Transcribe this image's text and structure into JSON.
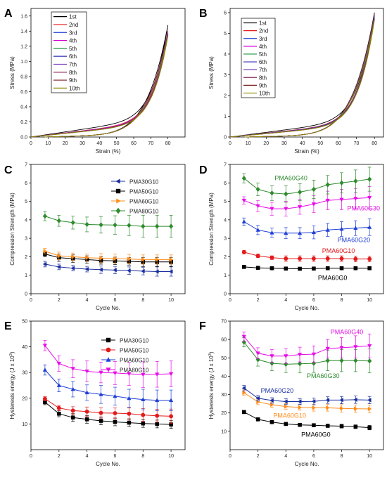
{
  "chart_data": [
    {
      "panel": "A",
      "type": "line",
      "xlabel": "Strain (%)",
      "ylabel": "Stress (MPa)",
      "xlim": [
        0,
        90
      ],
      "ylim": [
        0,
        1.7
      ],
      "xticks": [
        0,
        10,
        20,
        30,
        40,
        50,
        60,
        70,
        80
      ],
      "yticks": [
        0.0,
        0.2,
        0.4,
        0.6,
        0.8,
        1.0,
        1.2,
        1.4,
        1.6
      ],
      "ytick_labels": [
        "0.0",
        "0.2",
        "0.4",
        "0.6",
        "0.8",
        "1.0",
        "1.2",
        "1.4",
        "1.6"
      ],
      "legend": "top-left",
      "peak_strain": 80,
      "series": [
        {
          "name": "1st",
          "color": "#000000",
          "peak": 1.48,
          "load_mid": 0.27,
          "unload_mid": 0.05
        },
        {
          "name": "2nd",
          "color": "#e31a1c",
          "peak": 1.4,
          "load_mid": 0.22,
          "unload_mid": 0.05
        },
        {
          "name": "3rd",
          "color": "#1f3fd6",
          "peak": 1.38,
          "load_mid": 0.21,
          "unload_mid": 0.05
        },
        {
          "name": "4th",
          "color": "#d600d6",
          "peak": 1.37,
          "load_mid": 0.21,
          "unload_mid": 0.05
        },
        {
          "name": "5th",
          "color": "#1a9641",
          "peak": 1.36,
          "load_mid": 0.2,
          "unload_mid": 0.05
        },
        {
          "name": "6th",
          "color": "#2c2cb0",
          "peak": 1.36,
          "load_mid": 0.2,
          "unload_mid": 0.05
        },
        {
          "name": "7th",
          "color": "#7b3fbf",
          "peak": 1.35,
          "load_mid": 0.2,
          "unload_mid": 0.05
        },
        {
          "name": "8th",
          "color": "#8c2d5c",
          "peak": 1.35,
          "load_mid": 0.2,
          "unload_mid": 0.05
        },
        {
          "name": "9th",
          "color": "#7a1f1f",
          "peak": 1.34,
          "load_mid": 0.19,
          "unload_mid": 0.05
        },
        {
          "name": "10th",
          "color": "#8c8c00",
          "peak": 1.34,
          "load_mid": 0.19,
          "unload_mid": 0.05
        }
      ]
    },
    {
      "panel": "B",
      "type": "line",
      "xlabel": "Strain (%)",
      "ylabel": "Stress (MPa)",
      "xlim": [
        0,
        85
      ],
      "ylim": [
        0,
        6.2
      ],
      "xticks": [
        0,
        10,
        20,
        30,
        40,
        50,
        60,
        70,
        80
      ],
      "yticks": [
        0,
        1,
        2,
        3,
        4,
        5,
        6
      ],
      "ytick_labels": [
        "0",
        "1",
        "2",
        "3",
        "4",
        "5",
        "6"
      ],
      "legend": "top-left",
      "peak_strain": 80,
      "series": [
        {
          "name": "1st",
          "color": "#000000",
          "peak": 6.0,
          "load_mid": 0.9,
          "unload_mid": 0.15
        },
        {
          "name": "2nd",
          "color": "#e31a1c",
          "peak": 5.9,
          "load_mid": 0.75,
          "unload_mid": 0.15
        },
        {
          "name": "3rd",
          "color": "#1f3fd6",
          "peak": 5.85,
          "load_mid": 0.72,
          "unload_mid": 0.15
        },
        {
          "name": "4th",
          "color": "#d600d6",
          "peak": 5.8,
          "load_mid": 0.7,
          "unload_mid": 0.15
        },
        {
          "name": "5th",
          "color": "#1a9641",
          "peak": 5.8,
          "load_mid": 0.69,
          "unload_mid": 0.15
        },
        {
          "name": "6th",
          "color": "#2c2cb0",
          "peak": 5.75,
          "load_mid": 0.68,
          "unload_mid": 0.15
        },
        {
          "name": "7th",
          "color": "#7b3fbf",
          "peak": 5.75,
          "load_mid": 0.67,
          "unload_mid": 0.15
        },
        {
          "name": "8th",
          "color": "#8c2d5c",
          "peak": 5.7,
          "load_mid": 0.66,
          "unload_mid": 0.15
        },
        {
          "name": "9th",
          "color": "#7a1f1f",
          "peak": 5.7,
          "load_mid": 0.66,
          "unload_mid": 0.15
        },
        {
          "name": "10th",
          "color": "#8c8c00",
          "peak": 5.65,
          "load_mid": 0.65,
          "unload_mid": 0.15
        }
      ]
    },
    {
      "panel": "C",
      "type": "scatter",
      "xlabel": "Cycle No.",
      "ylabel": "Compression Strength (MPa)",
      "xlim": [
        0,
        11
      ],
      "ylim": [
        0,
        7
      ],
      "xticks": [
        0,
        2,
        4,
        6,
        8,
        10
      ],
      "yticks": [
        0,
        1,
        2,
        3,
        4,
        5,
        6,
        7
      ],
      "ytick_labels": [
        "0",
        "1",
        "2",
        "3",
        "4",
        "5",
        "6",
        "7"
      ],
      "legend": "top-center",
      "x": [
        1,
        2,
        3,
        4,
        5,
        6,
        7,
        8,
        9,
        10
      ],
      "series": [
        {
          "name": "PMA30G10",
          "color": "#1a2f9e",
          "marker": "triangle-left",
          "values": [
            1.6,
            1.45,
            1.38,
            1.33,
            1.3,
            1.28,
            1.25,
            1.22,
            1.2,
            1.2
          ],
          "errors": [
            0.15,
            0.15,
            0.15,
            0.15,
            0.2,
            0.2,
            0.2,
            0.2,
            0.25,
            0.25
          ]
        },
        {
          "name": "PMA50G10",
          "color": "#000000",
          "marker": "square",
          "values": [
            2.15,
            1.95,
            1.9,
            1.85,
            1.8,
            1.78,
            1.75,
            1.72,
            1.72,
            1.72
          ],
          "errors": [
            0.15,
            0.2,
            0.2,
            0.2,
            0.2,
            0.2,
            0.2,
            0.25,
            0.25,
            0.25
          ]
        },
        {
          "name": "PMA60G10",
          "color": "#ff8c1a",
          "marker": "triangle-right",
          "values": [
            2.3,
            2.05,
            2.0,
            1.95,
            1.92,
            1.9,
            1.88,
            1.85,
            1.85,
            1.85
          ],
          "errors": [
            0.15,
            0.2,
            0.2,
            0.2,
            0.25,
            0.25,
            0.25,
            0.25,
            0.25,
            0.25
          ]
        },
        {
          "name": "PMA80G10",
          "color": "#2e8b2e",
          "marker": "diamond",
          "values": [
            4.2,
            3.95,
            3.85,
            3.75,
            3.73,
            3.72,
            3.7,
            3.65,
            3.65,
            3.65
          ],
          "errors": [
            0.25,
            0.3,
            0.35,
            0.4,
            0.45,
            0.5,
            0.55,
            0.6,
            0.6,
            0.6
          ]
        }
      ]
    },
    {
      "panel": "D",
      "type": "scatter",
      "xlabel": "Cycle No.",
      "ylabel": "Compression Strength (MPa)",
      "xlim": [
        0,
        11
      ],
      "ylim": [
        0,
        7
      ],
      "xticks": [
        0,
        2,
        4,
        6,
        8,
        10
      ],
      "yticks": [
        0,
        1,
        2,
        3,
        4,
        5,
        6,
        7
      ],
      "ytick_labels": [
        "0",
        "1",
        "2",
        "3",
        "4",
        "5",
        "6",
        "7"
      ],
      "x": [
        1,
        2,
        3,
        4,
        5,
        6,
        7,
        8,
        9,
        10
      ],
      "series": [
        {
          "name": "PMA60G0",
          "color": "#000000",
          "marker": "square",
          "values": [
            1.45,
            1.4,
            1.38,
            1.36,
            1.35,
            1.36,
            1.38,
            1.38,
            1.38,
            1.38
          ],
          "errors": [
            0.05,
            0.05,
            0.05,
            0.05,
            0.05,
            0.05,
            0.05,
            0.05,
            0.05,
            0.05
          ]
        },
        {
          "name": "PMA60G10",
          "color": "#e31a1c",
          "marker": "circle",
          "values": [
            2.25,
            2.05,
            1.95,
            1.9,
            1.9,
            1.9,
            1.9,
            1.9,
            1.88,
            1.88
          ],
          "errors": [
            0.1,
            0.1,
            0.1,
            0.15,
            0.15,
            0.15,
            0.15,
            0.15,
            0.15,
            0.15
          ]
        },
        {
          "name": "PMA60G20",
          "color": "#1f3fd6",
          "marker": "triangle",
          "values": [
            3.9,
            3.45,
            3.3,
            3.28,
            3.28,
            3.32,
            3.45,
            3.5,
            3.55,
            3.6
          ],
          "errors": [
            0.2,
            0.25,
            0.25,
            0.3,
            0.3,
            0.35,
            0.35,
            0.4,
            0.4,
            0.45
          ]
        },
        {
          "name": "PMA60G30",
          "color": "#e60de6",
          "marker": "triangle-down",
          "values": [
            5.05,
            4.75,
            4.6,
            4.6,
            4.7,
            4.85,
            5.05,
            5.1,
            5.15,
            5.2
          ],
          "errors": [
            0.2,
            0.3,
            0.35,
            0.4,
            0.4,
            0.45,
            0.5,
            0.55,
            0.55,
            0.6
          ]
        },
        {
          "name": "PMA60G40",
          "color": "#2e8b2e",
          "marker": "diamond",
          "values": [
            6.25,
            5.65,
            5.45,
            5.4,
            5.5,
            5.65,
            5.9,
            6.0,
            6.1,
            6.2
          ],
          "errors": [
            0.25,
            0.35,
            0.4,
            0.45,
            0.45,
            0.5,
            0.5,
            0.55,
            0.6,
            0.65
          ]
        }
      ],
      "annotations": [
        {
          "text": "PMA60G40",
          "color": "#2e8b2e",
          "x": 3.2,
          "y": 6.15
        },
        {
          "text": "PMA60G30",
          "color": "#e60de6",
          "x": 8.4,
          "y": 4.5
        },
        {
          "text": "PMA60G20",
          "color": "#1f3fd6",
          "x": 7.7,
          "y": 2.8
        },
        {
          "text": "PMA60G10",
          "color": "#e31a1c",
          "x": 6.6,
          "y": 2.2
        },
        {
          "text": "PMA60G0",
          "color": "#000000",
          "x": 6.3,
          "y": 0.75
        }
      ]
    },
    {
      "panel": "E",
      "type": "scatter",
      "xlabel": "Cycle No.",
      "ylabel": "Hysteresis energy (J x 10",
      "ylabel_sup": "3",
      "ylabel_suffix": ")",
      "xlim": [
        0,
        11
      ],
      "ylim": [
        0,
        50
      ],
      "xticks": [
        0,
        2,
        4,
        6,
        8,
        10
      ],
      "yticks": [
        10,
        20,
        30,
        40,
        50
      ],
      "ytick_labels": [
        "10",
        "20",
        "30",
        "40",
        "50"
      ],
      "legend": "top-center",
      "x": [
        1,
        2,
        3,
        4,
        5,
        6,
        7,
        8,
        9,
        10
      ],
      "series": [
        {
          "name": "PMA30G10",
          "color": "#000000",
          "marker": "square",
          "values": [
            18.5,
            14.0,
            12.5,
            11.8,
            11.2,
            10.8,
            10.5,
            10.2,
            10.0,
            9.8
          ],
          "errors": [
            1.0,
            1.2,
            1.5,
            1.5,
            1.5,
            1.5,
            1.5,
            1.5,
            1.5,
            1.5
          ]
        },
        {
          "name": "PMA50G10",
          "color": "#e31a1c",
          "marker": "circle",
          "values": [
            19.8,
            16.2,
            15.2,
            14.8,
            14.3,
            14.2,
            14.0,
            13.5,
            13.2,
            13.0
          ],
          "errors": [
            0.8,
            1.0,
            1.5,
            1.8,
            2.0,
            2.0,
            2.2,
            2.5,
            2.5,
            2.8
          ]
        },
        {
          "name": "PMA60G10",
          "color": "#1f3fd6",
          "marker": "triangle",
          "values": [
            31.0,
            25.0,
            23.5,
            22.2,
            21.5,
            20.8,
            20.0,
            19.5,
            19.2,
            19.2
          ],
          "errors": [
            2.0,
            2.5,
            3.0,
            3.0,
            3.5,
            3.5,
            3.5,
            4.0,
            4.0,
            4.0
          ]
        },
        {
          "name": "PMA80G10",
          "color": "#e60de6",
          "marker": "triangle-down",
          "values": [
            40.5,
            33.5,
            31.5,
            30.5,
            30.0,
            29.8,
            29.5,
            29.2,
            29.3,
            29.5
          ],
          "errors": [
            2.0,
            3.0,
            3.5,
            4.0,
            4.0,
            4.5,
            4.5,
            5.0,
            5.0,
            5.0
          ]
        }
      ]
    },
    {
      "panel": "F",
      "type": "scatter",
      "xlabel": "Cycle No.",
      "ylabel": "Hysteresis energy (J x 10",
      "ylabel_sup": "3",
      "ylabel_suffix": ")",
      "xlim": [
        0,
        11
      ],
      "ylim": [
        0,
        70
      ],
      "xticks": [
        0,
        2,
        4,
        6,
        8,
        10
      ],
      "yticks": [
        10,
        20,
        30,
        40,
        50,
        60,
        70
      ],
      "ytick_labels": [
        "10",
        "20",
        "30",
        "40",
        "50",
        "60",
        "70"
      ],
      "x": [
        1,
        2,
        3,
        4,
        5,
        6,
        7,
        8,
        9,
        10
      ],
      "series": [
        {
          "name": "PMA60G0",
          "color": "#000000",
          "marker": "square",
          "values": [
            20.5,
            16.5,
            15.0,
            14.0,
            13.5,
            13.3,
            13.0,
            12.8,
            12.5,
            12.0
          ],
          "errors": [
            0.8,
            0.8,
            0.8,
            0.8,
            0.8,
            0.8,
            0.8,
            1.0,
            1.0,
            1.2
          ]
        },
        {
          "name": "PMA60G10",
          "color": "#ff8c1a",
          "marker": "triangle-right",
          "values": [
            31.0,
            26.0,
            24.5,
            23.5,
            23.0,
            22.8,
            22.8,
            22.5,
            22.3,
            22.2
          ],
          "errors": [
            1.5,
            1.5,
            1.5,
            1.5,
            1.5,
            1.8,
            1.8,
            2.0,
            2.0,
            2.0
          ]
        },
        {
          "name": "PMA60G20",
          "color": "#1a2f9e",
          "marker": "triangle-left",
          "values": [
            33.5,
            28.0,
            26.8,
            26.2,
            26.2,
            26.3,
            27.0,
            27.0,
            27.2,
            27.0
          ],
          "errors": [
            1.5,
            1.5,
            1.5,
            1.5,
            1.5,
            1.8,
            1.8,
            2.0,
            2.0,
            2.0
          ]
        },
        {
          "name": "PMA60G30",
          "color": "#2e8b2e",
          "marker": "diamond",
          "values": [
            58.5,
            49.0,
            47.0,
            46.5,
            46.8,
            47.0,
            48.5,
            48.5,
            48.5,
            48.3
          ],
          "errors": [
            2.5,
            3.5,
            4.0,
            4.5,
            5.0,
            5.0,
            5.5,
            6.0,
            6.0,
            6.5
          ]
        },
        {
          "name": "PMA60G40",
          "color": "#e60de6",
          "marker": "triangle-down",
          "values": [
            61.5,
            52.5,
            51.0,
            51.0,
            51.8,
            52.0,
            55.0,
            55.5,
            56.0,
            56.5
          ],
          "errors": [
            2.5,
            3.0,
            3.5,
            4.0,
            4.0,
            4.5,
            5.0,
            5.5,
            6.0,
            6.5
          ]
        }
      ],
      "annotations": [
        {
          "text": "PMA60G40",
          "color": "#e60de6",
          "x": 7.2,
          "y": 63.0
        },
        {
          "text": "PMA60G30",
          "color": "#2e8b2e",
          "x": 5.5,
          "y": 39.0
        },
        {
          "text": "PMA60G20",
          "color": "#1a2f9e",
          "x": 2.2,
          "y": 31.0
        },
        {
          "text": "PMA60G10",
          "color": "#ff8c1a",
          "x": 3.1,
          "y": 17.5
        },
        {
          "text": "PMA60G0",
          "color": "#000000",
          "x": 5.1,
          "y": 7.0
        }
      ]
    }
  ]
}
